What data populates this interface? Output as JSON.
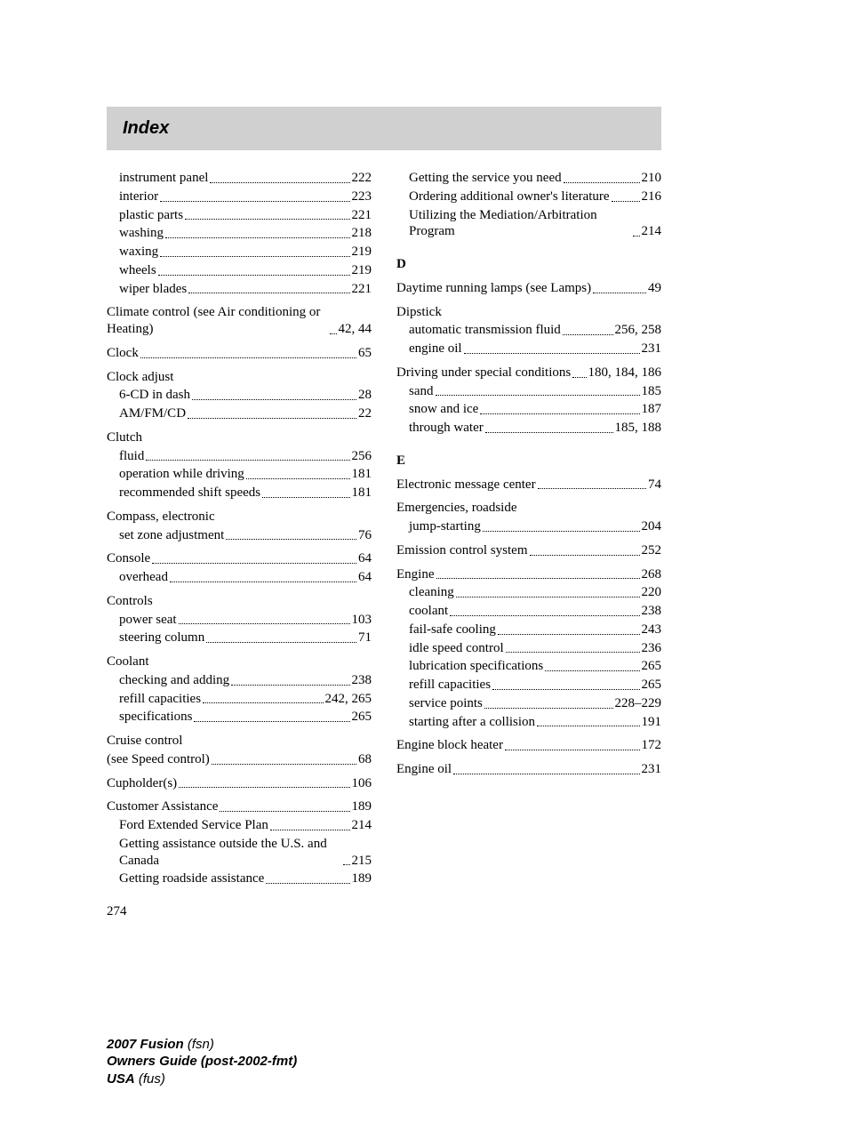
{
  "header": "Index",
  "page_number": "274",
  "footer": {
    "l1_bold": "2007 Fusion",
    "l1_ital": "(fsn)",
    "l2_bold": "Owners Guide (post-2002-fmt)",
    "l3_bold": "USA",
    "l3_ital": "(fus)"
  },
  "letters": {
    "D": "D",
    "E": "E"
  },
  "left": {
    "instrument_panel": {
      "l": "instrument panel",
      "p": "222"
    },
    "interior": {
      "l": "interior",
      "p": "223"
    },
    "plastic_parts": {
      "l": "plastic parts",
      "p": "221"
    },
    "washing": {
      "l": "washing",
      "p": "218"
    },
    "waxing": {
      "l": "waxing",
      "p": "219"
    },
    "wheels": {
      "l": "wheels",
      "p": "219"
    },
    "wiper_blades": {
      "l": "wiper blades",
      "p": "221"
    },
    "climate": {
      "l": "Climate control (see Air conditioning or Heating)",
      "p": "42, 44"
    },
    "clock": {
      "l": "Clock",
      "p": "65"
    },
    "clock_adjust": {
      "l": "Clock adjust"
    },
    "cd6": {
      "l": "6-CD in dash",
      "p": "28"
    },
    "amfmcd": {
      "l": "AM/FM/CD",
      "p": "22"
    },
    "clutch": {
      "l": "Clutch"
    },
    "clutch_fluid": {
      "l": "fluid",
      "p": "256"
    },
    "clutch_op": {
      "l": "operation while driving",
      "p": "181"
    },
    "clutch_shift": {
      "l": "recommended shift speeds",
      "p": "181"
    },
    "compass": {
      "l": "Compass, electronic"
    },
    "compass_zone": {
      "l": "set zone adjustment",
      "p": "76"
    },
    "console": {
      "l": "Console",
      "p": "64"
    },
    "console_oh": {
      "l": "overhead",
      "p": "64"
    },
    "controls": {
      "l": "Controls"
    },
    "controls_seat": {
      "l": "power seat",
      "p": "103"
    },
    "controls_steer": {
      "l": "steering column",
      "p": "71"
    },
    "coolant": {
      "l": "Coolant"
    },
    "coolant_check": {
      "l": "checking and adding",
      "p": "238"
    },
    "coolant_refill": {
      "l": "refill capacities",
      "p": "242, 265"
    },
    "coolant_spec": {
      "l": "specifications",
      "p": "265"
    },
    "cruise": {
      "l": "Cruise control"
    },
    "cruise_see": {
      "l": "(see Speed control)",
      "p": "68"
    },
    "cupholder": {
      "l": "Cupholder(s)",
      "p": "106"
    },
    "custassist": {
      "l": "Customer Assistance",
      "p": "189"
    },
    "ford_ext": {
      "l": "Ford Extended Service Plan",
      "p": "214"
    },
    "getting_outside": {
      "l": "Getting assistance outside the U.S. and Canada",
      "p": "215"
    },
    "getting_roadside": {
      "l": "Getting roadside assistance",
      "p": "189"
    }
  },
  "right": {
    "getting_service": {
      "l": "Getting the service you need",
      "p": "210"
    },
    "ordering": {
      "l": "Ordering additional owner's literature",
      "p": "216"
    },
    "utilizing": {
      "l": "Utilizing the Mediation/Arbitration Program",
      "p": "214"
    },
    "drl": {
      "l": "Daytime running lamps (see Lamps)",
      "p": "49"
    },
    "dipstick": {
      "l": "Dipstick"
    },
    "dip_auto": {
      "l": "automatic transmission fluid",
      "p": "256, 258"
    },
    "dip_oil": {
      "l": "engine oil",
      "p": "231"
    },
    "driving": {
      "l": "Driving under special conditions",
      "p": "180, 184, 186"
    },
    "driving_sand": {
      "l": "sand",
      "p": "185"
    },
    "driving_snow": {
      "l": "snow and ice",
      "p": "187"
    },
    "driving_water": {
      "l": "through water",
      "p": "185, 188"
    },
    "emc": {
      "l": "Electronic message center",
      "p": "74"
    },
    "emerg": {
      "l": "Emergencies, roadside"
    },
    "emerg_jump": {
      "l": "jump-starting",
      "p": "204"
    },
    "emission": {
      "l": "Emission control system",
      "p": "252"
    },
    "engine": {
      "l": "Engine",
      "p": "268"
    },
    "eng_clean": {
      "l": "cleaning",
      "p": "220"
    },
    "eng_coolant": {
      "l": "coolant",
      "p": "238"
    },
    "eng_failsafe": {
      "l": "fail-safe cooling",
      "p": "243"
    },
    "eng_idle": {
      "l": "idle speed control",
      "p": "236"
    },
    "eng_lube": {
      "l": "lubrication specifications",
      "p": "265"
    },
    "eng_refill": {
      "l": "refill capacities",
      "p": "265"
    },
    "eng_service": {
      "l": "service points",
      "p": "228–229"
    },
    "eng_start": {
      "l": "starting after a collision",
      "p": "191"
    },
    "eng_block": {
      "l": "Engine block heater",
      "p": "172"
    },
    "eng_oil": {
      "l": "Engine oil",
      "p": "231"
    }
  }
}
